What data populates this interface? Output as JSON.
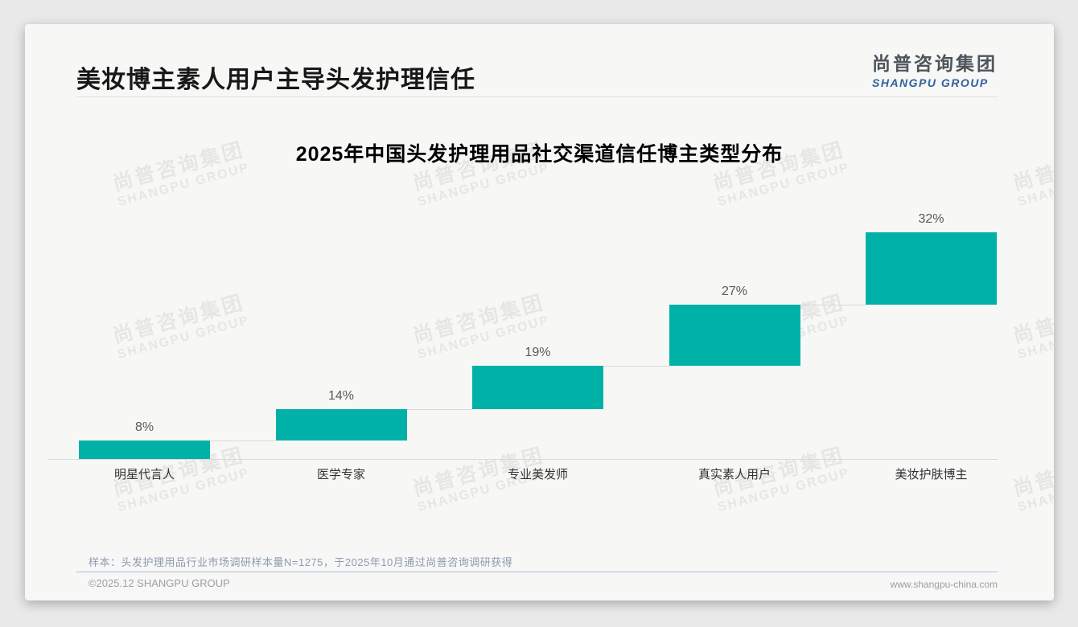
{
  "page": {
    "background": "#e9e9e9",
    "card_background": "#f7f7f6"
  },
  "header": {
    "title": "美妆博主素人用户主导头发护理信任",
    "logo": {
      "zh": "尚普咨询集团",
      "en": "SHANGPU GROUP"
    }
  },
  "chart_data": {
    "type": "bar",
    "variant": "waterfall-steps",
    "title": "2025年中国头发护理用品社交渠道信任博主类型分布",
    "categories": [
      "明星代言人",
      "医学专家",
      "专业美发师",
      "真实素人用户",
      "美妆护肤博主"
    ],
    "values": [
      8,
      14,
      19,
      27,
      32
    ],
    "value_labels": [
      "8%",
      "14%",
      "19%",
      "27%",
      "32%"
    ],
    "unit": "%",
    "ylim": [
      0,
      100
    ],
    "grid": "off",
    "legend": "none",
    "bar_color": "#00b1a7",
    "baseline_color": "#d9d9d9",
    "connector_color": "#d9d9d9",
    "value_label_color": "#595959",
    "category_label_color": "#333333"
  },
  "watermark": {
    "zh": "尚普咨询集团",
    "en": "SHANGPU GROUP"
  },
  "footnote": {
    "sample_note": "样本：头发护理用品行业市场调研样本量N=1275，于2025年10月通过尚普咨询调研获得"
  },
  "footer": {
    "copyright": "©2025.12 SHANGPU GROUP",
    "website": "www.shangpu-china.com"
  }
}
